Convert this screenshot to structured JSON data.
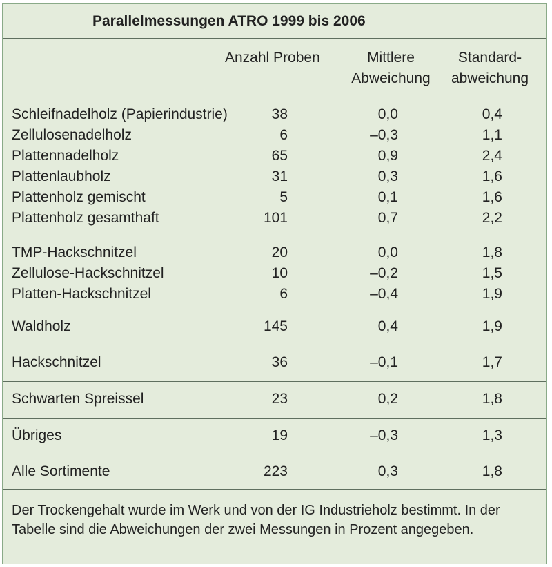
{
  "title": "Parallelmessungen ATRO 1999 bis 2006",
  "headers": {
    "count": "Anzahl Proben",
    "mean_1": "Mittlere",
    "mean_2": "Abweichung",
    "std_1": "Standard-",
    "std_2": "abweichung"
  },
  "groups": [
    [
      {
        "label": "Schleifnadelholz (Papierindustrie)",
        "count": "38",
        "mean": "0,0",
        "std": "0,4"
      },
      {
        "label": "Zellulosenadelholz",
        "count": "6",
        "mean": "–0,3",
        "std": "1,1"
      },
      {
        "label": "Plattennadelholz",
        "count": "65",
        "mean": "0,9",
        "std": "2,4"
      },
      {
        "label": "Plattenlaubholz",
        "count": "31",
        "mean": "0,3",
        "std": "1,6"
      },
      {
        "label": "Plattenholz gemischt",
        "count": "5",
        "mean": "0,1",
        "std": "1,6"
      },
      {
        "label": "Plattenholz gesamthaft",
        "count": "101",
        "mean": "0,7",
        "std": "2,2"
      }
    ],
    [
      {
        "label": "TMP-Hackschnitzel",
        "count": "20",
        "mean": "0,0",
        "std": "1,8"
      },
      {
        "label": "Zellulose-Hackschnitzel",
        "count": "10",
        "mean": "–0,2",
        "std": "1,5"
      },
      {
        "label": "Platten-Hackschnitzel",
        "count": "6",
        "mean": "–0,4",
        "std": "1,9"
      }
    ],
    [
      {
        "label": "Waldholz",
        "count": "145",
        "mean": "0,4",
        "std": "1,9"
      }
    ],
    [
      {
        "label": "Hackschnitzel",
        "count": "36",
        "mean": "–0,1",
        "std": "1,7"
      }
    ],
    [
      {
        "label": "Schwarten Spreissel",
        "count": "23",
        "mean": "0,2",
        "std": "1,8"
      }
    ],
    [
      {
        "label": "Übriges",
        "count": "19",
        "mean": "–0,3",
        "std": "1,3"
      }
    ],
    [
      {
        "label": "Alle Sortimente",
        "count": "223",
        "mean": "0,3",
        "std": "1,8"
      }
    ]
  ],
  "footnote": "Der Trockengehalt wurde im Werk und von der IG Industrieholz bestimmt. In der Tabelle sind die Abweichungen der zwei Messungen in Prozent angegeben."
}
